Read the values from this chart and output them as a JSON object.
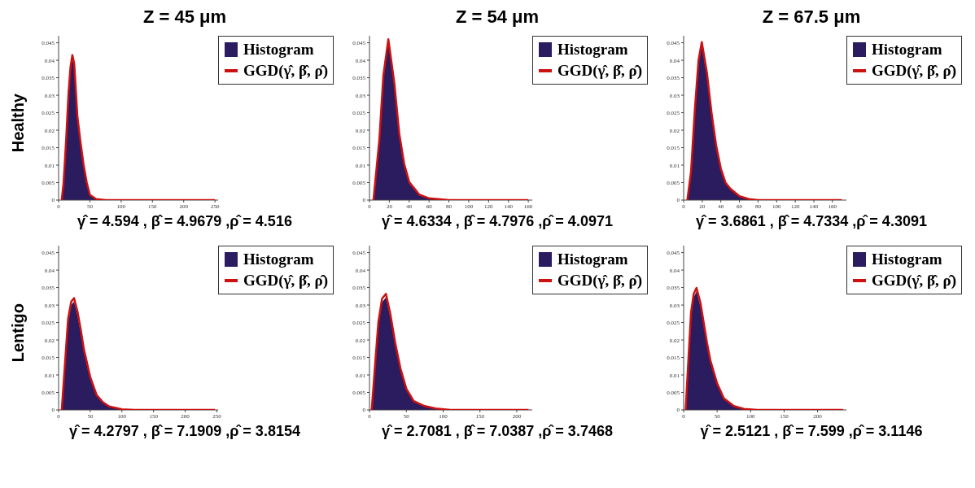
{
  "chart_data": [
    {
      "type": "line",
      "title": "Z = 45 μm",
      "ylabel": "Healthy",
      "xlabel": "γ̂ = 4.594 , β̂ = 4.9679 ,ρ̂ = 4.516",
      "legend": "top right",
      "x": [
        5,
        8,
        12,
        16,
        19,
        22,
        25,
        30,
        35,
        40,
        45,
        50,
        60,
        75,
        250
      ],
      "series": [
        {
          "name": "Histogram",
          "type": "area",
          "color": "#2b1b5f",
          "values": [
            0,
            0.004,
            0.016,
            0.03,
            0.037,
            0.0405,
            0.038,
            0.023,
            0.0158,
            0.0095,
            0.0047,
            0.0013,
            0.0002,
            0,
            0
          ]
        },
        {
          "name": "GGD(γ̂, β̂, ρ̂)",
          "color": "#cc1111",
          "values": [
            0,
            0.005,
            0.017,
            0.031,
            0.038,
            0.0415,
            0.039,
            0.024,
            0.0166,
            0.01,
            0.005,
            0.0015,
            0.0003,
            0,
            0
          ]
        }
      ],
      "xlim": [
        0,
        255
      ],
      "xticks": [
        0,
        50,
        100,
        150,
        200,
        250
      ],
      "ylim": [
        0,
        0.047
      ],
      "yticks": [
        0,
        0.005,
        0.01,
        0.015,
        0.02,
        0.025,
        0.03,
        0.035,
        0.04,
        0.045
      ]
    },
    {
      "type": "line",
      "title": "Z = 54 μm",
      "xlabel": "γ̂ = 4.6334 , β̂ = 4.7976 ,ρ̂ = 4.0971",
      "legend": "top right",
      "x": [
        4,
        10,
        14,
        19,
        25,
        30,
        35,
        40,
        50,
        60,
        80,
        160
      ],
      "series": [
        {
          "name": "Histogram",
          "type": "area",
          "color": "#2b1b5f",
          "values": [
            0,
            0.0165,
            0.0347,
            0.045,
            0.0325,
            0.0182,
            0.0097,
            0.0048,
            0.0014,
            0.0004,
            0,
            0
          ]
        },
        {
          "name": "GGD(γ̂, β̂, ρ̂)",
          "color": "#cc1111",
          "values": [
            0,
            0.0175,
            0.0357,
            0.046,
            0.0335,
            0.019,
            0.0103,
            0.0052,
            0.0016,
            0.0005,
            0,
            0
          ]
        }
      ],
      "xlim": [
        0,
        164
      ],
      "xticks": [
        0,
        20,
        40,
        60,
        80,
        100,
        120,
        140,
        160
      ],
      "ylim": [
        0,
        0.047
      ],
      "yticks": [
        0,
        0.005,
        0.01,
        0.015,
        0.02,
        0.025,
        0.03,
        0.035,
        0.04,
        0.045
      ]
    },
    {
      "type": "line",
      "title": "Z = 67.5 μm",
      "xlabel": "γ̂ = 3.6861 , β̂ = 4.7334 ,ρ̂ = 4.3091",
      "legend": "top right",
      "x": [
        4,
        8,
        12,
        16,
        19.5,
        25,
        30,
        35,
        40,
        45,
        50,
        60,
        70,
        80,
        170
      ],
      "series": [
        {
          "name": "Histogram",
          "type": "area",
          "color": "#2b1b5f",
          "values": [
            0,
            0.0075,
            0.0247,
            0.039,
            0.0442,
            0.0355,
            0.0242,
            0.0149,
            0.0085,
            0.0047,
            0.0031,
            0.001,
            0.0002,
            0,
            0
          ]
        },
        {
          "name": "GGD(γ̂, β̂, ρ̂)",
          "color": "#cc1111",
          "values": [
            0,
            0.0083,
            0.0257,
            0.04,
            0.0452,
            0.0365,
            0.025,
            0.0156,
            0.009,
            0.005,
            0.0033,
            0.0011,
            0.0003,
            0,
            0
          ]
        }
      ],
      "xlim": [
        0,
        175
      ],
      "xticks": [
        0,
        20,
        40,
        60,
        80,
        100,
        120,
        140,
        160
      ],
      "ylim": [
        0,
        0.047
      ],
      "yticks": [
        0,
        0.005,
        0.01,
        0.015,
        0.02,
        0.025,
        0.03,
        0.035,
        0.04,
        0.045
      ]
    },
    {
      "type": "line",
      "ylabel": "Lentigo",
      "xlabel": "γ̂ = 4.2797 , β̂ = 7.1909 ,ρ̂ = 3.8154",
      "legend": "top right",
      "x": [
        5,
        10,
        15,
        20,
        24.4,
        30,
        35,
        40,
        50,
        60,
        70,
        80,
        100,
        120,
        247
      ],
      "series": [
        {
          "name": "Histogram",
          "type": "area",
          "color": "#2b1b5f",
          "values": [
            0,
            0.012,
            0.025,
            0.03,
            0.031,
            0.027,
            0.022,
            0.0165,
            0.0088,
            0.004,
            0.002,
            0.0009,
            0.0001,
            0,
            0
          ]
        },
        {
          "name": "GGD(γ̂, β̂, ρ̂)",
          "color": "#cc1111",
          "values": [
            0,
            0.013,
            0.026,
            0.031,
            0.032,
            0.028,
            0.023,
            0.0173,
            0.0094,
            0.0043,
            0.0022,
            0.001,
            0.0002,
            0,
            0
          ]
        }
      ],
      "xlim": [
        0,
        252
      ],
      "xticks": [
        0,
        50,
        100,
        150,
        200,
        250
      ],
      "ylim": [
        0,
        0.047
      ],
      "yticks": [
        0,
        0.005,
        0.01,
        0.015,
        0.02,
        0.025,
        0.03,
        0.035,
        0.04,
        0.045
      ]
    },
    {
      "type": "line",
      "xlabel": "γ̂ = 2.7081 , β̂ = 7.0387 ,ρ̂ = 3.7468",
      "legend": "top right",
      "x": [
        3,
        8,
        12,
        17,
        22.3,
        28,
        35,
        42,
        50,
        60,
        75,
        90,
        110,
        216
      ],
      "series": [
        {
          "name": "Histogram",
          "type": "area",
          "color": "#2b1b5f",
          "values": [
            0,
            0.013,
            0.024,
            0.0308,
            0.0322,
            0.0268,
            0.0183,
            0.0113,
            0.0057,
            0.0023,
            0.001,
            0.0003,
            0,
            0
          ]
        },
        {
          "name": "GGD(γ̂, β̂, ρ̂)",
          "color": "#cc1111",
          "values": [
            0,
            0.014,
            0.025,
            0.0318,
            0.0332,
            0.0278,
            0.0191,
            0.0119,
            0.0061,
            0.0025,
            0.0011,
            0.0004,
            0,
            0
          ]
        }
      ],
      "xlim": [
        0,
        221
      ],
      "xticks": [
        0,
        50,
        100,
        150,
        200
      ],
      "ylim": [
        0,
        0.047
      ],
      "yticks": [
        0,
        0.005,
        0.01,
        0.015,
        0.02,
        0.025,
        0.03,
        0.035,
        0.04,
        0.045
      ]
    },
    {
      "type": "line",
      "xlabel": "γ̂ = 2.5121 , β̂ = 7.599 ,ρ̂ = 3.1146",
      "legend": "top right",
      "x": [
        3,
        7,
        11,
        15,
        19.2,
        25,
        30,
        35,
        40,
        50,
        60,
        75,
        90,
        110,
        238
      ],
      "series": [
        {
          "name": "Histogram",
          "type": "area",
          "color": "#2b1b5f",
          "values": [
            0,
            0.013,
            0.0268,
            0.0322,
            0.0339,
            0.0297,
            0.0241,
            0.0184,
            0.0135,
            0.0072,
            0.0031,
            0.001,
            0.0002,
            0,
            0
          ]
        },
        {
          "name": "GGD(γ̂, β̂, ρ̂)",
          "color": "#cc1111",
          "values": [
            0,
            0.014,
            0.0278,
            0.0332,
            0.0349,
            0.0307,
            0.0249,
            0.0191,
            0.0141,
            0.0076,
            0.0033,
            0.0011,
            0.0003,
            0,
            0
          ]
        }
      ],
      "xlim": [
        0,
        243
      ],
      "xticks": [
        0,
        50,
        100,
        150,
        200
      ],
      "ylim": [
        0,
        0.047
      ],
      "yticks": [
        0,
        0.005,
        0.01,
        0.015,
        0.02,
        0.025,
        0.03,
        0.035,
        0.04,
        0.045
      ]
    }
  ]
}
